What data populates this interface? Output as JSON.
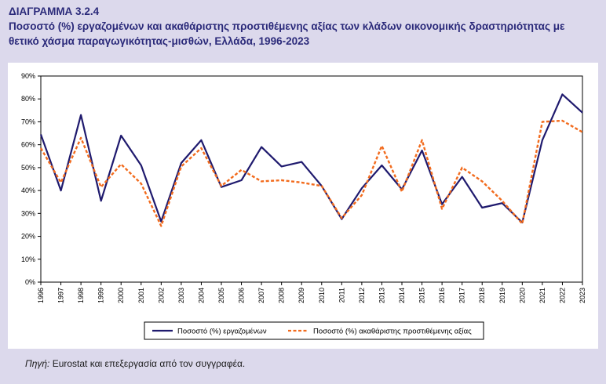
{
  "figure": {
    "label": "ΔΙΑΓΡΑΜΜΑ 3.2.4",
    "title": "Ποσοστό (%) εργαζομένων και ακαθάριστης προστιθέμενης αξίας των κλάδων οικονομικής δραστηριότητας με θετικό χάσμα παραγωγικότητας-μισθών, Ελλάδα, 1996-2023"
  },
  "source": {
    "label": "Πηγή:",
    "text": " Eurostat και επεξεργασία από τον συγγραφέα."
  },
  "colors": {
    "background": "#dcd9ec",
    "title": "#2b2a7a",
    "series_employment": "#1f1a6e",
    "series_gva": "#f26b1d"
  },
  "chart_data": {
    "type": "line",
    "x": [
      "1996",
      "1997",
      "1998",
      "1999",
      "2000",
      "2001",
      "2002",
      "2003",
      "2004",
      "2005",
      "2006",
      "2007",
      "2008",
      "2009",
      "2010",
      "2011",
      "2012",
      "2013",
      "2014",
      "2015",
      "2016",
      "2017",
      "2018",
      "2019",
      "2020",
      "2021",
      "2022",
      "2023"
    ],
    "series": [
      {
        "name": "Ποσοστό (%) εργαζομένων",
        "style": "solid",
        "values": [
          64.5,
          40,
          73,
          35.5,
          64,
          51,
          26.5,
          52,
          62,
          41.5,
          44.5,
          59,
          50.5,
          52.5,
          42,
          27.5,
          41,
          51,
          40.5,
          57.5,
          34,
          46,
          32.5,
          34.5,
          26,
          62,
          82,
          74
        ]
      },
      {
        "name": "Ποσοστό (%) ακαθάριστης προστιθέμενης αξίας",
        "style": "dashed",
        "values": [
          58.5,
          43.5,
          63,
          41.5,
          51.5,
          43,
          24.5,
          50.5,
          58.5,
          42,
          49,
          44,
          44.5,
          43.5,
          42,
          28,
          38,
          59.5,
          39.5,
          62,
          32,
          50,
          44,
          35.5,
          25.5,
          70,
          70.5,
          65.5
        ]
      }
    ],
    "ylim": [
      0,
      90
    ],
    "yticks": [
      "0%",
      "10%",
      "20%",
      "30%",
      "40%",
      "50%",
      "60%",
      "70%",
      "80%",
      "90%"
    ],
    "grid": false,
    "legend_position": "bottom"
  }
}
